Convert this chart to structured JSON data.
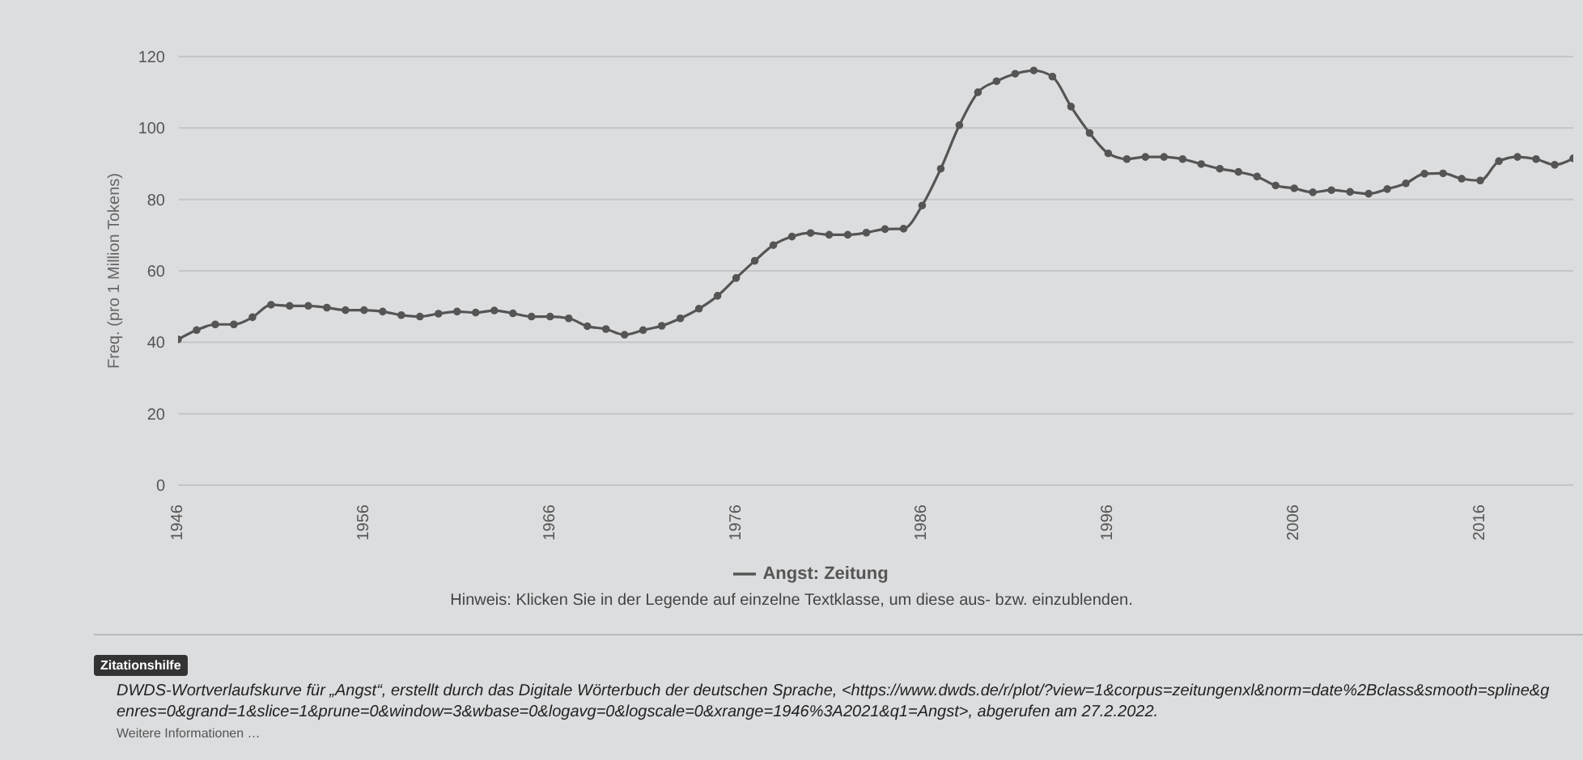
{
  "chart_data": {
    "type": "line",
    "ylabel": "Freq. (pro 1 Million Tokens)",
    "x": [
      1946,
      1947,
      1948,
      1949,
      1950,
      1951,
      1952,
      1953,
      1954,
      1955,
      1956,
      1957,
      1958,
      1959,
      1960,
      1961,
      1962,
      1963,
      1964,
      1965,
      1966,
      1967,
      1968,
      1969,
      1970,
      1971,
      1972,
      1973,
      1974,
      1975,
      1976,
      1977,
      1978,
      1979,
      1980,
      1981,
      1982,
      1983,
      1984,
      1985,
      1986,
      1987,
      1988,
      1989,
      1990,
      1991,
      1992,
      1993,
      1994,
      1995,
      1996,
      1997,
      1998,
      1999,
      2000,
      2001,
      2002,
      2003,
      2004,
      2005,
      2006,
      2007,
      2008,
      2009,
      2010,
      2011,
      2012,
      2013,
      2014,
      2015,
      2016,
      2017,
      2018,
      2019,
      2020,
      2021
    ],
    "series": [
      {
        "name": "Angst: Zeitung",
        "color": "#555555",
        "values": [
          40.8,
          43.4,
          45,
          45,
          47,
          50.5,
          50.2,
          50.2,
          49.7,
          49,
          49,
          48.6,
          47.6,
          47.2,
          48,
          48.6,
          48.3,
          48.9,
          48.1,
          47.2,
          47.2,
          46.7,
          44.5,
          43.7,
          42.1,
          43.4,
          44.6,
          46.7,
          49.4,
          53,
          58,
          62.8,
          67.2,
          69.6,
          70.6,
          70.1,
          70.1,
          70.7,
          71.7,
          71.8,
          78.3,
          88.6,
          100.8,
          110,
          113.1,
          115.2,
          116.1,
          114.4,
          106,
          98.6,
          92.9,
          91.3,
          91.9,
          91.9,
          91.3,
          89.9,
          88.6,
          87.7,
          86.4,
          83.9,
          83.1,
          82,
          82.6,
          82.1,
          81.6,
          82.9,
          84.5,
          87.2,
          87.3,
          85.8,
          85.3,
          90.7,
          91.9,
          91.3,
          89.7,
          91.5
        ]
      }
    ],
    "xlim": [
      1946,
      2021
    ],
    "xticks": [
      1946,
      1956,
      1966,
      1976,
      1986,
      1996,
      2006,
      2016
    ],
    "ylim": [
      0,
      120
    ],
    "yticks": [
      0,
      20,
      40,
      60,
      80,
      100,
      120
    ],
    "grid": "y",
    "legend": "bottom",
    "marker": "circle",
    "line_style": "solid",
    "annotations": [
      "Hinweis: Klicken Sie in der Legende auf einzelne Textklasse, um diese aus- bzw. einzublenden.",
      "Zitationshilfe",
      "DWDS-Wortverlaufskurve für „Angst“, erstellt durch das Digitale Wörterbuch der deutschen Sprache, <https://www.dwds.de/r/plot/?view=1&corpus=zeitungenxl&norm=date%2Bclass&smooth=spline&genres=0&grand=1&slice=1&prune=0&window=3&wbase=0&logavg=0&logscale=0&xrange=1946%3A2021&q1=Angst>, abgerufen am 27.2.2022.",
      "Weitere Informationen …"
    ]
  }
}
